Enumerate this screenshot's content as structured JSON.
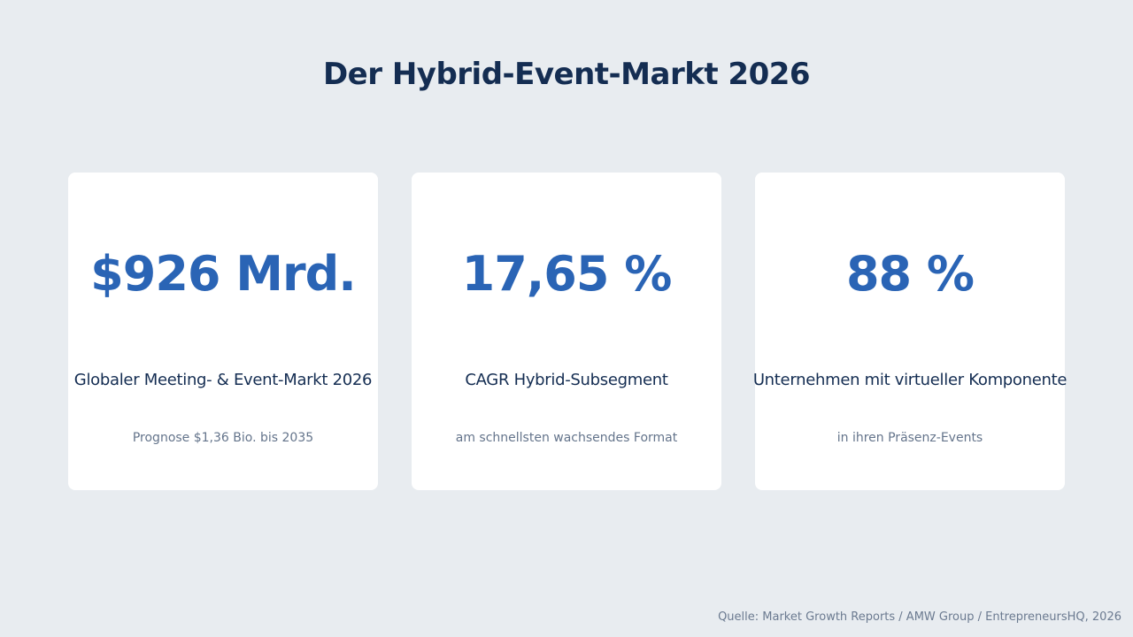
{
  "slide": {
    "title": "Der Hybrid-Event-Markt 2026",
    "source": "Quelle: Market Growth Reports / AMW Group / EntrepreneursHQ, 2026"
  },
  "colors": {
    "background": "#e8ecf0",
    "card": "#ffffff",
    "title": "#142d52",
    "accent": "#2a64b5",
    "muted": "#64748b"
  },
  "cards": [
    {
      "value": "$926 Mrd.",
      "label": "Globaler Meeting- & Event-Markt 2026",
      "note": "Prognose $1,36 Bio. bis 2035"
    },
    {
      "value": "17,65 %",
      "label": "CAGR Hybrid-Subsegment",
      "note": "am schnellsten wachsendes Format"
    },
    {
      "value": "88 %",
      "label": "Unternehmen mit virtueller Komponente",
      "note": "in ihren Präsenz-Events"
    }
  ]
}
